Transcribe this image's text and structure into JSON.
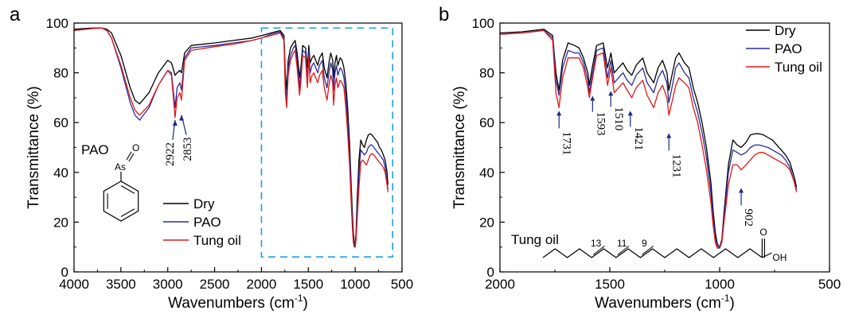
{
  "colors": {
    "Dry": "#000000",
    "PAO": "#2b2b9c",
    "Tung oil": "#e01818",
    "arrow": "#1a2a80",
    "box": "#1e9fe0"
  },
  "chart_data": [
    {
      "type": "line",
      "panel_label": "a",
      "xlabel_main": "Wavenumbers (cm",
      "xlabel_sup": "-1",
      "xlabel_end": ")",
      "ylabel": "Transmittance (%)",
      "xlim": [
        4000,
        500
      ],
      "ylim": [
        0,
        100
      ],
      "x_ticks": [
        "4000",
        "3500",
        "3000",
        "2500",
        "2000",
        "1500",
        "1000",
        "500"
      ],
      "y_ticks": [
        "0",
        "20",
        "40",
        "60",
        "80",
        "100"
      ],
      "legend": [
        "Dry",
        "PAO",
        "Tung oil"
      ],
      "inset_label": "PAO",
      "inset_atoms": [
        "As",
        "O"
      ],
      "box_region": {
        "x": [
          2000,
          600
        ],
        "y": [
          6,
          98
        ]
      },
      "annotations": [
        {
          "text": "2922",
          "x": 2922,
          "y": 62
        },
        {
          "text": "2853",
          "x": 2853,
          "y": 64
        }
      ],
      "series": [
        {
          "name": "Dry",
          "x": [
            4000,
            3800,
            3700,
            3650,
            3600,
            3500,
            3400,
            3350,
            3300,
            3200,
            3100,
            3000,
            2960,
            2922,
            2900,
            2870,
            2853,
            2820,
            2750,
            2500,
            2300,
            2100,
            2000,
            1900,
            1800,
            1760,
            1745,
            1731,
            1715,
            1690,
            1660,
            1640,
            1620,
            1600,
            1593,
            1580,
            1560,
            1530,
            1510,
            1495,
            1480,
            1460,
            1440,
            1421,
            1400,
            1380,
            1350,
            1330,
            1300,
            1280,
            1260,
            1240,
            1231,
            1215,
            1200,
            1185,
            1160,
            1140,
            1120,
            1100,
            1080,
            1060,
            1040,
            1030,
            1020,
            1010,
            1000,
            990,
            980,
            960,
            940,
            920,
            902,
            880,
            860,
            840,
            820,
            800,
            780,
            760,
            740,
            720,
            700,
            680,
            660,
            650
          ],
          "y": [
            97.5,
            98,
            98,
            97.5,
            96,
            87,
            74,
            69,
            67.5,
            72,
            80,
            85,
            84,
            79,
            80,
            81,
            80,
            88,
            91,
            92,
            93,
            94,
            95,
            96,
            97,
            95,
            80,
            73,
            85,
            90,
            92,
            93,
            88,
            81,
            78,
            82,
            91,
            90,
            82,
            91,
            84,
            86,
            87,
            85,
            83,
            86,
            88,
            82,
            78,
            84,
            88,
            85,
            78,
            84,
            87,
            83,
            86,
            85,
            82,
            76,
            66,
            52,
            33,
            24,
            16,
            12,
            10,
            16,
            28,
            45,
            53,
            51,
            50,
            53,
            55,
            55.5,
            55,
            54,
            53,
            52,
            50,
            49,
            47,
            45,
            40,
            35
          ]
        },
        {
          "name": "PAO",
          "x": [
            4000,
            3800,
            3700,
            3650,
            3600,
            3500,
            3400,
            3350,
            3300,
            3200,
            3100,
            3000,
            2960,
            2922,
            2900,
            2870,
            2853,
            2820,
            2750,
            2500,
            2300,
            2100,
            2000,
            1900,
            1800,
            1760,
            1745,
            1731,
            1715,
            1690,
            1660,
            1640,
            1620,
            1600,
            1593,
            1580,
            1560,
            1530,
            1510,
            1495,
            1480,
            1460,
            1440,
            1421,
            1400,
            1380,
            1350,
            1330,
            1300,
            1280,
            1260,
            1240,
            1231,
            1215,
            1200,
            1185,
            1160,
            1140,
            1120,
            1100,
            1080,
            1060,
            1040,
            1030,
            1020,
            1010,
            1000,
            990,
            980,
            960,
            940,
            920,
            902,
            880,
            860,
            840,
            820,
            800,
            780,
            760,
            740,
            720,
            700,
            680,
            660,
            650
          ],
          "y": [
            97,
            97.8,
            98,
            97,
            94,
            82,
            68,
            63,
            61,
            66,
            75,
            81,
            80,
            66,
            74,
            76,
            73,
            86,
            90,
            91,
            92,
            93,
            94,
            95.5,
            96.5,
            94,
            75,
            69,
            82,
            87,
            90,
            91,
            85,
            78,
            74,
            79,
            89,
            88,
            77,
            89,
            80,
            83,
            84,
            82,
            80,
            83,
            85,
            78,
            74,
            80,
            84,
            81,
            73,
            80,
            83,
            79,
            82,
            81,
            78,
            71,
            61,
            47,
            29,
            20,
            13,
            11,
            10,
            14,
            24,
            40,
            49,
            48,
            47,
            48,
            50,
            51,
            51,
            50,
            49,
            48,
            47,
            46,
            45,
            42,
            36,
            33
          ]
        },
        {
          "name": "Tung oil",
          "x": [
            4000,
            3800,
            3700,
            3650,
            3600,
            3500,
            3400,
            3350,
            3300,
            3200,
            3100,
            3000,
            2960,
            2922,
            2900,
            2870,
            2853,
            2820,
            2750,
            2500,
            2300,
            2100,
            2000,
            1900,
            1800,
            1760,
            1745,
            1731,
            1715,
            1690,
            1660,
            1640,
            1620,
            1600,
            1593,
            1580,
            1560,
            1530,
            1510,
            1495,
            1480,
            1460,
            1440,
            1421,
            1400,
            1380,
            1350,
            1330,
            1300,
            1280,
            1260,
            1240,
            1231,
            1215,
            1200,
            1185,
            1160,
            1140,
            1120,
            1100,
            1080,
            1060,
            1040,
            1030,
            1020,
            1010,
            1000,
            990,
            980,
            960,
            940,
            920,
            902,
            880,
            860,
            840,
            820,
            800,
            780,
            760,
            740,
            720,
            700,
            680,
            660,
            650
          ],
          "y": [
            97,
            97.8,
            98,
            97,
            94,
            83,
            70,
            65,
            63,
            67,
            75,
            81,
            79,
            62,
            70,
            72,
            69,
            85,
            89,
            90.5,
            91.5,
            93,
            94,
            95,
            96,
            93,
            72,
            66,
            79,
            85,
            88,
            89,
            82,
            74,
            71,
            76,
            87,
            86,
            74,
            87,
            76,
            79,
            80,
            78,
            76,
            79,
            81,
            74,
            69,
            75,
            79,
            76,
            67,
            75,
            78,
            74,
            77,
            76,
            74,
            66,
            56,
            43,
            26,
            18,
            12,
            10,
            10,
            13,
            20,
            34,
            44,
            45,
            44,
            43,
            45,
            47,
            47.5,
            47,
            46,
            45,
            44,
            43,
            42,
            40,
            35,
            32
          ]
        }
      ]
    },
    {
      "type": "line",
      "panel_label": "b",
      "xlabel_main": "Wavenumbers (cm",
      "xlabel_sup": "-1",
      "xlabel_end": ")",
      "ylabel": "Transmittance (%)",
      "xlim": [
        2000,
        500
      ],
      "ylim": [
        0,
        100
      ],
      "x_ticks": [
        "2000",
        "1500",
        "1000",
        "500"
      ],
      "y_ticks": [
        "0",
        "20",
        "40",
        "60",
        "80",
        "100"
      ],
      "legend": [
        "Dry",
        "PAO",
        "Tung oil"
      ],
      "inset_label": "Tung oil",
      "inset_numbers": [
        "13",
        "11",
        "9"
      ],
      "inset_atoms": [
        "O",
        "OH"
      ],
      "annotations": [
        {
          "text": "1731",
          "x": 1731,
          "y": 66
        },
        {
          "text": "1593",
          "x": 1593,
          "y": 72
        },
        {
          "text": "1510",
          "x": 1510,
          "y": 74
        },
        {
          "text": "1421",
          "x": 1421,
          "y": 66
        },
        {
          "text": "1231",
          "x": 1231,
          "y": 57
        },
        {
          "text": "902",
          "x": 902,
          "y": 35
        }
      ],
      "series": [
        {
          "name": "Dry",
          "x": [
            2000,
            1900,
            1800,
            1760,
            1745,
            1731,
            1715,
            1690,
            1660,
            1640,
            1620,
            1600,
            1593,
            1580,
            1560,
            1530,
            1510,
            1495,
            1480,
            1460,
            1440,
            1421,
            1400,
            1380,
            1350,
            1330,
            1300,
            1280,
            1260,
            1240,
            1231,
            1215,
            1200,
            1185,
            1160,
            1140,
            1120,
            1100,
            1080,
            1060,
            1040,
            1030,
            1020,
            1010,
            1000,
            990,
            980,
            960,
            940,
            920,
            902,
            880,
            860,
            840,
            820,
            800,
            780,
            760,
            740,
            720,
            700,
            680,
            660,
            650
          ],
          "y": [
            96,
            96.5,
            97.5,
            95,
            80,
            73,
            85,
            92,
            91,
            90,
            86,
            80,
            75,
            82,
            91,
            92,
            82,
            88,
            80,
            82,
            84,
            81,
            79,
            83,
            86,
            80,
            76,
            82,
            85,
            80,
            73,
            80,
            86,
            88,
            84,
            82,
            74,
            68,
            60,
            50,
            36,
            25,
            16,
            11,
            10,
            13,
            24,
            43,
            53,
            51,
            50,
            52,
            55,
            55.5,
            55.5,
            55,
            54,
            53,
            51,
            49,
            47,
            44,
            38,
            34
          ]
        },
        {
          "name": "PAO",
          "x": [
            2000,
            1900,
            1800,
            1760,
            1745,
            1731,
            1715,
            1690,
            1660,
            1640,
            1620,
            1600,
            1593,
            1580,
            1560,
            1530,
            1510,
            1495,
            1480,
            1460,
            1440,
            1421,
            1400,
            1380,
            1350,
            1330,
            1300,
            1280,
            1260,
            1240,
            1231,
            1215,
            1200,
            1185,
            1160,
            1140,
            1120,
            1100,
            1080,
            1060,
            1040,
            1030,
            1020,
            1010,
            1000,
            990,
            980,
            960,
            940,
            920,
            902,
            880,
            860,
            840,
            820,
            800,
            780,
            760,
            740,
            720,
            700,
            680,
            660,
            650
          ],
          "y": [
            95.5,
            96,
            97,
            94,
            77,
            71,
            82,
            89,
            88,
            88,
            84,
            77,
            72,
            79,
            89,
            90,
            78,
            85,
            76,
            78,
            80,
            77,
            75,
            79,
            82,
            76,
            72,
            78,
            81,
            76,
            68,
            75,
            82,
            84,
            80,
            78,
            70,
            64,
            56,
            46,
            32,
            22,
            14,
            10,
            9.5,
            12,
            22,
            40,
            49,
            48,
            47,
            48,
            50,
            51,
            51,
            50.5,
            50,
            49,
            48,
            47,
            45,
            42,
            36,
            33
          ]
        },
        {
          "name": "Tung oil",
          "x": [
            2000,
            1900,
            1800,
            1760,
            1745,
            1731,
            1715,
            1690,
            1660,
            1640,
            1620,
            1600,
            1593,
            1580,
            1560,
            1530,
            1510,
            1495,
            1480,
            1460,
            1440,
            1421,
            1400,
            1380,
            1350,
            1330,
            1300,
            1280,
            1260,
            1240,
            1231,
            1215,
            1200,
            1185,
            1160,
            1140,
            1120,
            1100,
            1080,
            1060,
            1040,
            1030,
            1020,
            1010,
            1000,
            990,
            980,
            960,
            940,
            920,
            902,
            880,
            860,
            840,
            820,
            800,
            780,
            760,
            740,
            720,
            700,
            680,
            660,
            650
          ],
          "y": [
            95.5,
            96,
            97,
            93,
            72,
            66,
            78,
            86,
            86,
            86,
            82,
            74,
            70,
            77,
            87,
            88,
            75,
            82,
            72,
            74,
            76,
            73,
            70,
            74,
            77,
            71,
            66,
            72,
            75,
            70,
            63,
            69,
            75,
            78,
            76,
            74,
            66,
            60,
            51,
            41,
            28,
            19,
            12,
            9.5,
            10,
            12,
            20,
            35,
            43,
            43,
            41,
            43,
            45,
            47,
            48,
            48,
            47,
            46,
            45,
            44,
            43,
            41,
            36,
            32
          ]
        }
      ]
    }
  ]
}
